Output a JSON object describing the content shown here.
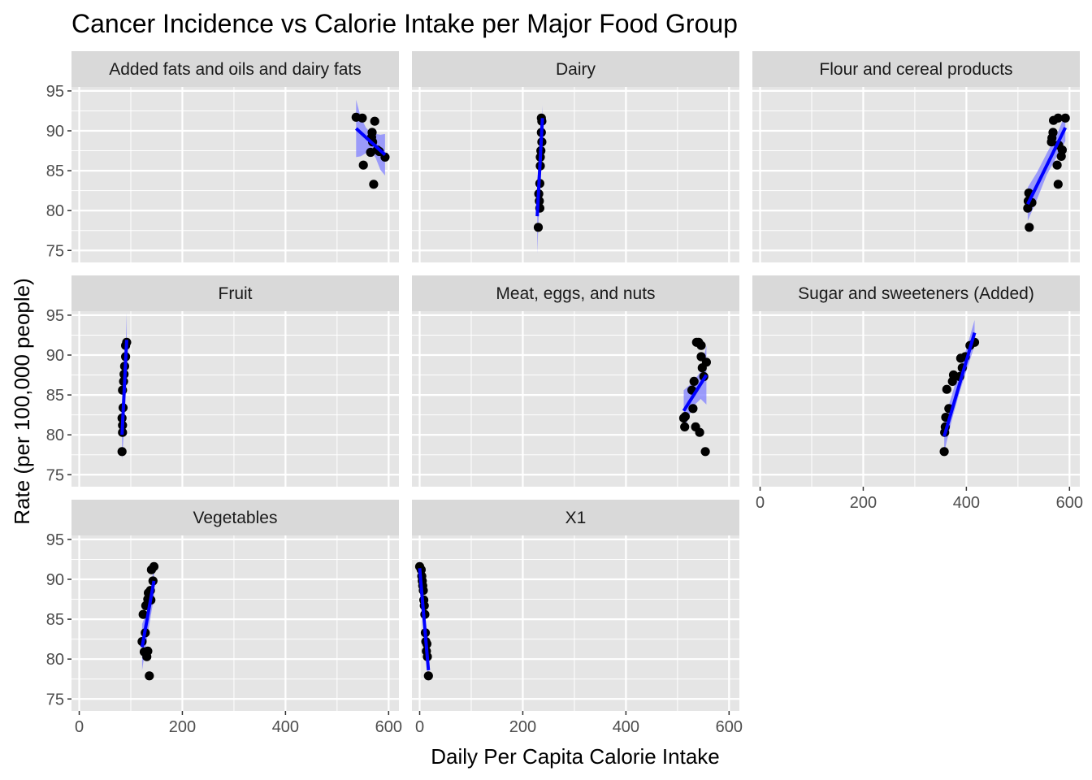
{
  "chart_data": {
    "type": "scatter",
    "title": "Cancer Incidence vs Calorie Intake per Major Food Group",
    "xlabel": "Daily Per Capita Calorie Intake",
    "ylabel": "Rate (per 100,000 people)",
    "xlim": [
      -15,
      620
    ],
    "ylim": [
      73.5,
      95.5
    ],
    "x_ticks": [
      0,
      200,
      400,
      600
    ],
    "y_ticks": [
      75,
      80,
      85,
      90,
      95
    ],
    "x_tick_labels": [
      "0",
      "200",
      "400",
      "600"
    ],
    "y_tick_labels": [
      "75",
      "80",
      "85",
      "90",
      "95"
    ],
    "grid": true,
    "layout": {
      "columns": 3,
      "rows": 3
    },
    "colors": {
      "panel_background": "#e5e5e5",
      "grid": "#ffffff",
      "strip_background": "#d9d9d9",
      "points": "#000000",
      "fit_line": "#0000ff",
      "confidence_band": "#8080ff"
    },
    "panels": [
      {
        "label": "Added fats and oils and dairy fats",
        "points": [
          [
            537,
            91.7
          ],
          [
            549,
            91.6
          ],
          [
            551,
            85.7
          ],
          [
            565,
            87.3
          ],
          [
            567,
            89.2
          ],
          [
            568,
            89.8
          ],
          [
            569,
            88.6
          ],
          [
            571,
            83.3
          ],
          [
            573,
            91.2
          ],
          [
            578,
            87.6
          ],
          [
            582,
            87.4
          ],
          [
            593,
            86.7
          ]
        ],
        "fit": {
          "x": [
            537,
            593
          ],
          "y": [
            90.3,
            87.0
          ]
        },
        "band": {
          "x": [
            537,
            546,
            556,
            565,
            575,
            584,
            593
          ],
          "upper": [
            93.9,
            91.7,
            90.4,
            89.8,
            89.6,
            89.5,
            89.6
          ],
          "lower": [
            86.7,
            86.8,
            87.2,
            87.6,
            86.6,
            85.1,
            84.4
          ]
        }
      },
      {
        "label": "Dairy",
        "points": [
          [
            230,
            77.9
          ],
          [
            233,
            80.3
          ],
          [
            232,
            81.2
          ],
          [
            231,
            82.1
          ],
          [
            233,
            83.4
          ],
          [
            234,
            85.6
          ],
          [
            234,
            86.7
          ],
          [
            235,
            87.5
          ],
          [
            237,
            88.6
          ],
          [
            236,
            89.8
          ],
          [
            237,
            91.2
          ],
          [
            236,
            91.6
          ]
        ],
        "fit": {
          "x": [
            228,
            238
          ],
          "y": [
            79.3,
            91.6
          ]
        },
        "band": {
          "x": [
            228,
            233,
            238
          ],
          "upper": [
            84.0,
            86.2,
            93.2
          ],
          "lower": [
            74.6,
            82.8,
            90.0
          ]
        }
      },
      {
        "label": "Flour and cereal products",
        "points": [
          [
            519,
            80.3
          ],
          [
            520,
            81.2
          ],
          [
            521,
            82.2
          ],
          [
            522,
            77.9
          ],
          [
            527,
            81.0
          ],
          [
            565,
            88.6
          ],
          [
            566,
            89.1
          ],
          [
            569,
            91.3
          ],
          [
            568,
            89.8
          ],
          [
            576,
            85.7
          ],
          [
            578,
            83.3
          ],
          [
            578,
            91.6
          ],
          [
            579,
            88.2
          ],
          [
            584,
            86.8
          ],
          [
            586,
            87.6
          ],
          [
            592,
            91.6
          ]
        ],
        "fit": {
          "x": [
            519,
            592
          ],
          "y": [
            80.8,
            90.4
          ]
        },
        "band": {
          "x": [
            519,
            537,
            556,
            574,
            592
          ],
          "upper": [
            82.9,
            84.8,
            87.2,
            89.3,
            92.1
          ],
          "lower": [
            78.7,
            81.4,
            84.5,
            86.6,
            88.7
          ]
        }
      },
      {
        "label": "Fruit",
        "points": [
          [
            83,
            77.9
          ],
          [
            84,
            80.3
          ],
          [
            84,
            81.2
          ],
          [
            83,
            82.1
          ],
          [
            85,
            83.4
          ],
          [
            84,
            85.6
          ],
          [
            86,
            86.7
          ],
          [
            87,
            87.6
          ],
          [
            88,
            88.6
          ],
          [
            90,
            89.8
          ],
          [
            90,
            91.2
          ],
          [
            92,
            91.6
          ]
        ],
        "fit": {
          "x": [
            83,
            92
          ],
          "y": [
            80.0,
            91.9
          ]
        },
        "band": {
          "x": [
            83,
            88,
            92
          ],
          "upper": [
            83.2,
            87.0,
            95.3
          ],
          "lower": [
            76.8,
            82.0,
            88.5
          ]
        }
      },
      {
        "label": "Meat, eggs, and nuts",
        "points": [
          [
            512,
            82.1
          ],
          [
            514,
            81.0
          ],
          [
            515,
            82.3
          ],
          [
            530,
            83.3
          ],
          [
            528,
            85.6
          ],
          [
            532,
            86.7
          ],
          [
            535,
            81.0
          ],
          [
            541,
            91.6
          ],
          [
            537,
            91.6
          ],
          [
            543,
            80.3
          ],
          [
            546,
            91.2
          ],
          [
            546,
            89.8
          ],
          [
            548,
            88.4
          ],
          [
            551,
            87.3
          ],
          [
            554,
            77.9
          ],
          [
            556,
            89.1
          ]
        ],
        "fit": {
          "x": [
            512,
            556
          ],
          "y": [
            83.0,
            87.5
          ]
        },
        "band": {
          "x": [
            512,
            523,
            534,
            545,
            556
          ],
          "upper": [
            85.6,
            86.2,
            87.0,
            87.9,
            91.2
          ],
          "lower": [
            80.4,
            82.5,
            83.8,
            84.5,
            83.8
          ]
        }
      },
      {
        "label": "Sugar and sweeteners (Added)",
        "points": [
          [
            357,
            77.9
          ],
          [
            358,
            80.3
          ],
          [
            359,
            81.0
          ],
          [
            360,
            82.2
          ],
          [
            362,
            85.7
          ],
          [
            366,
            83.3
          ],
          [
            373,
            86.7
          ],
          [
            375,
            87.5
          ],
          [
            387,
            87.3
          ],
          [
            389,
            89.6
          ],
          [
            392,
            88.4
          ],
          [
            398,
            89.8
          ],
          [
            407,
            91.2
          ],
          [
            416,
            91.6
          ]
        ],
        "fit": {
          "x": [
            357,
            416
          ],
          "y": [
            79.8,
            92.8
          ]
        },
        "band": {
          "x": [
            357,
            372,
            387,
            401,
            416
          ],
          "upper": [
            81.8,
            85.0,
            88.3,
            91.0,
            94.4
          ],
          "lower": [
            77.8,
            81.9,
            85.4,
            88.2,
            91.2
          ]
        }
      },
      {
        "label": "Vegetables",
        "points": [
          [
            122,
            82.2
          ],
          [
            124,
            85.6
          ],
          [
            126,
            80.9
          ],
          [
            128,
            83.3
          ],
          [
            129,
            86.7
          ],
          [
            131,
            80.3
          ],
          [
            133,
            81.0
          ],
          [
            133,
            87.5
          ],
          [
            134,
            88.3
          ],
          [
            136,
            77.9
          ],
          [
            138,
            88.6
          ],
          [
            139,
            87.4
          ],
          [
            140,
            91.2
          ],
          [
            143,
            89.8
          ],
          [
            145,
            91.6
          ]
        ],
        "fit": {
          "x": [
            122,
            145
          ],
          "y": [
            81.5,
            89.8
          ]
        },
        "band": {
          "x": [
            122,
            134,
            145
          ],
          "upper": [
            84.4,
            86.5,
            91.8
          ],
          "lower": [
            78.6,
            83.6,
            87.8
          ]
        }
      },
      {
        "label": "X1",
        "points": [
          [
            0,
            91.6
          ],
          [
            3,
            91.2
          ],
          [
            4,
            90.4
          ],
          [
            5,
            89.8
          ],
          [
            6,
            89.2
          ],
          [
            7,
            88.6
          ],
          [
            8,
            87.4
          ],
          [
            9,
            86.7
          ],
          [
            10,
            85.6
          ],
          [
            11,
            83.3
          ],
          [
            12,
            82.2
          ],
          [
            13,
            81.0
          ],
          [
            14,
            81.9
          ],
          [
            15,
            80.3
          ],
          [
            17,
            77.9
          ]
        ],
        "fit": {
          "x": [
            0,
            17
          ],
          "y": [
            91.4,
            78.6
          ]
        },
        "band": {
          "x": [
            0,
            8,
            17
          ],
          "upper": [
            92.6,
            86.0,
            80.0
          ],
          "lower": [
            90.2,
            84.8,
            77.2
          ]
        }
      }
    ]
  }
}
